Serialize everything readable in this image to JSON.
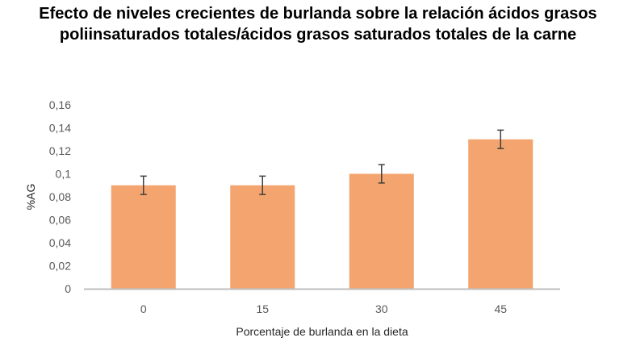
{
  "title": {
    "line1": "Efecto de niveles crecientes de burlanda sobre la relación ácidos grasos",
    "line2": "poliinsaturados totales/ácidos grasos saturados totales de la carne"
  },
  "chart_data": {
    "type": "bar",
    "title": "Efecto de niveles crecientes de burlanda sobre la relación ácidos grasos poliinsaturados totales/ácidos grasos saturados totales de la carne",
    "xlabel": "Porcentaje de burlanda  en la dieta",
    "ylabel": "%AG",
    "categories": [
      "0",
      "15",
      "30",
      "45"
    ],
    "values": [
      0.09,
      0.09,
      0.1,
      0.13
    ],
    "error": [
      0.008,
      0.008,
      0.008,
      0.008
    ],
    "ylim": [
      0,
      0.16
    ],
    "yticks": [
      0,
      0.02,
      0.04,
      0.06,
      0.08,
      0.1,
      0.12,
      0.14,
      0.16
    ],
    "ytick_labels": [
      "0",
      "0,02",
      "0,04",
      "0,06",
      "0,08",
      "0,1",
      "0,12",
      "0,14",
      "0,16"
    ],
    "bar_color": "#F4A46E",
    "error_color": "#404040",
    "axis_color": "#BFBFBF",
    "grid": false,
    "legend": "none"
  }
}
